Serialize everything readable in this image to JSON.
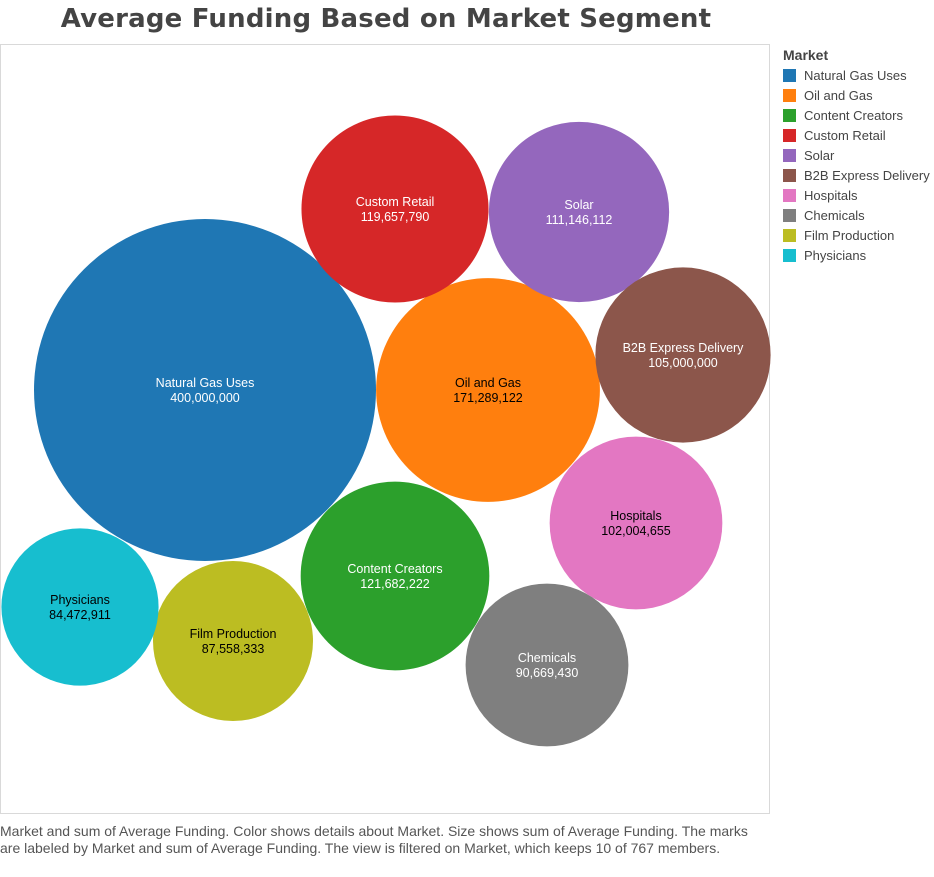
{
  "title": "Average Funding Based on Market Segment",
  "legend": {
    "title": "Market"
  },
  "caption": "Market and sum of Average Funding.  Color shows details about Market.  Size shows sum of Average Funding.  The marks are labeled by Market and sum of Average Funding. The view is filtered on Market, which keeps 10 of 767 members.",
  "chart_data": {
    "type": "bubble",
    "measure": "sum of Average Funding",
    "dimension": "Market",
    "legend_placement": "right",
    "series": [
      {
        "name": "Natural Gas Uses",
        "value": 400000000,
        "label": "400,000,000",
        "color": "#1f77b4",
        "label_color": "#ffffff"
      },
      {
        "name": "Oil and Gas",
        "value": 171289122,
        "label": "171,289,122",
        "color": "#ff7f0e",
        "label_color": "#000000"
      },
      {
        "name": "Content Creators",
        "value": 121682222,
        "label": "121,682,222",
        "color": "#2ca02c",
        "label_color": "#ffffff"
      },
      {
        "name": "Custom Retail",
        "value": 119657790,
        "label": "119,657,790",
        "color": "#d62728",
        "label_color": "#ffffff"
      },
      {
        "name": "Solar",
        "value": 111146112,
        "label": "111,146,112",
        "color": "#9467bd",
        "label_color": "#ffffff"
      },
      {
        "name": "B2B Express Delivery",
        "value": 105000000,
        "label": "105,000,000",
        "color": "#8c564b",
        "label_color": "#ffffff"
      },
      {
        "name": "Hospitals",
        "value": 102004655,
        "label": "102,004,655",
        "color": "#e377c2",
        "label_color": "#000000"
      },
      {
        "name": "Chemicals",
        "value": 90669430,
        "label": "90,669,430",
        "color": "#7f7f7f",
        "label_color": "#ffffff"
      },
      {
        "name": "Film Production",
        "value": 87558333,
        "label": "87,558,333",
        "color": "#bcbd22",
        "label_color": "#000000"
      },
      {
        "name": "Physicians",
        "value": 84472911,
        "label": "84,472,911",
        "color": "#17becf",
        "label_color": "#000000"
      }
    ]
  }
}
